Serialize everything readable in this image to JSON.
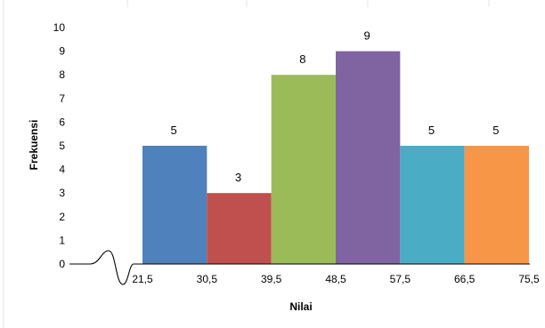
{
  "chart_data": {
    "type": "bar",
    "title": "",
    "xlabel": "Nilai",
    "ylabel": "Frekuensi",
    "x_ticks": [
      "21,5",
      "30,5",
      "39,5",
      "48,5",
      "57,5",
      "66,5",
      "75,5"
    ],
    "categories": [
      "21,5-30,5",
      "30,5-39,5",
      "39,5-48,5",
      "48,5-57,5",
      "57,5-66,5",
      "66,5-75,5"
    ],
    "values": [
      5,
      3,
      8,
      9,
      5,
      5
    ],
    "data_labels": [
      "5",
      "3",
      "8",
      "9",
      "5",
      "5"
    ],
    "y_ticks": [
      "0",
      "1",
      "2",
      "3",
      "4",
      "5",
      "6",
      "7",
      "8",
      "9",
      "10"
    ],
    "ylim": [
      0,
      10
    ],
    "grid": false,
    "legend": "none",
    "bar_colors": [
      "#4f81bd",
      "#c0504d",
      "#9bbb59",
      "#8064a2",
      "#4bacc6",
      "#f79646"
    ],
    "axis_break": true
  }
}
